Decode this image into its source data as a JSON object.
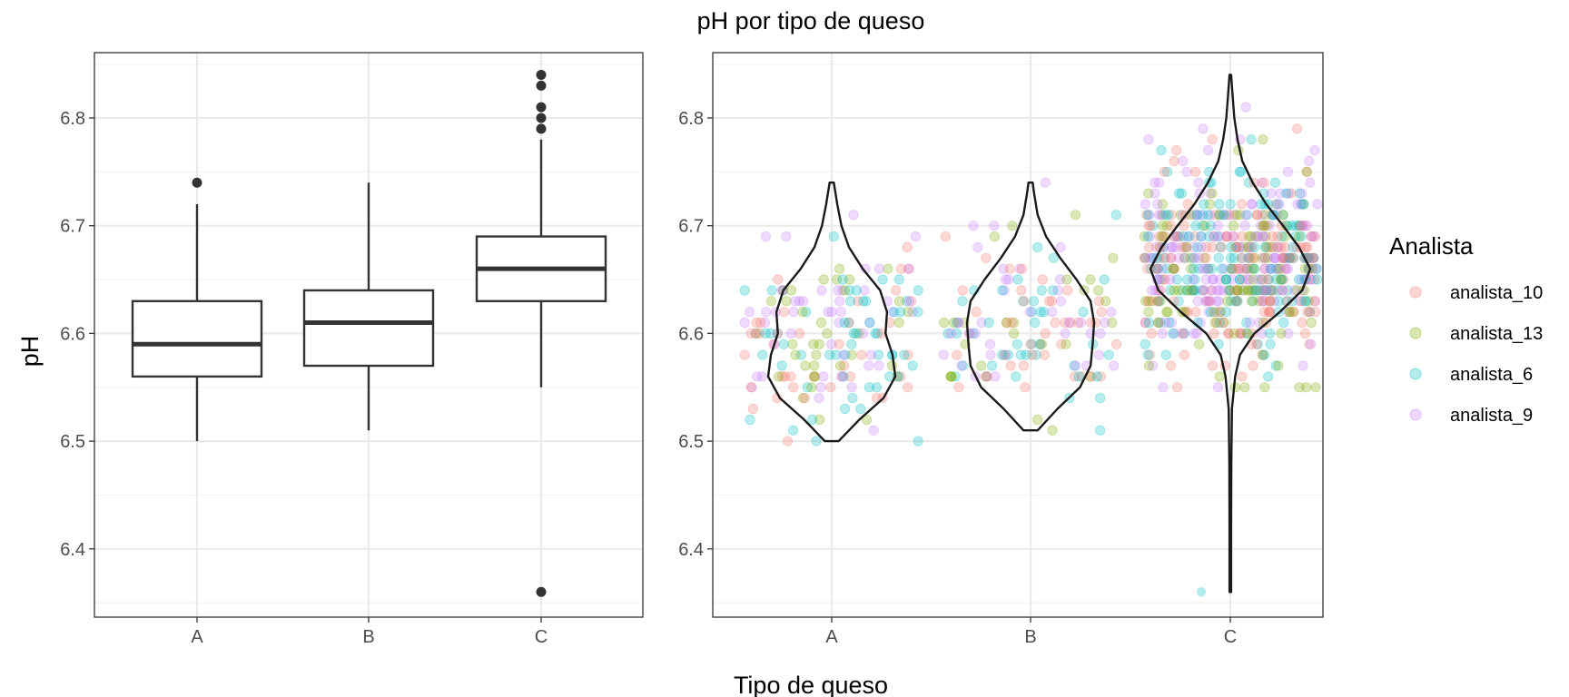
{
  "figure": {
    "title": "pH por tipo de queso",
    "xlabel": "Tipo de queso",
    "ylabel": "pH"
  },
  "colors": {
    "analista_10": "#F8766D",
    "analista_13": "#7CAE00",
    "analista_6": "#00BFC4",
    "analista_9": "#C77CFF",
    "ink": "#333333",
    "grid_major": "#EBEBEB",
    "grid_minor": "#F2F2F2"
  },
  "legend": {
    "title": "Analista",
    "items": [
      "analista_10",
      "analista_13",
      "analista_6",
      "analista_9"
    ]
  },
  "chart_data": [
    {
      "type": "box",
      "categories": [
        "A",
        "B",
        "C"
      ],
      "ylim": [
        6.35,
        6.85
      ],
      "yticks": [
        "6.4",
        "6.5",
        "6.6",
        "6.7",
        "6.8"
      ],
      "grid": true,
      "boxes": [
        {
          "category": "A",
          "whisker_low": 6.5,
          "q1": 6.56,
          "median": 6.59,
          "q3": 6.63,
          "whisker_high": 6.72,
          "outliers": [
            6.74
          ]
        },
        {
          "category": "B",
          "whisker_low": 6.51,
          "q1": 6.57,
          "median": 6.61,
          "q3": 6.64,
          "whisker_high": 6.74,
          "outliers": []
        },
        {
          "category": "C",
          "whisker_low": 6.55,
          "q1": 6.63,
          "median": 6.66,
          "q3": 6.69,
          "whisker_high": 6.78,
          "outliers": [
            6.36,
            6.79,
            6.8,
            6.81,
            6.83,
            6.84
          ]
        }
      ]
    },
    {
      "type": "violin",
      "categories": [
        "A",
        "B",
        "C"
      ],
      "ylim": [
        6.35,
        6.85
      ],
      "yticks": [
        "6.4",
        "6.5",
        "6.6",
        "6.7",
        "6.8"
      ],
      "grid": true,
      "legend_position": "right",
      "point_counts": {
        "A": 180,
        "B": 150,
        "C": 620
      },
      "violins": [
        {
          "category": "A",
          "y": [
            6.5,
            6.52,
            6.54,
            6.56,
            6.58,
            6.6,
            6.62,
            6.64,
            6.66,
            6.68,
            6.7,
            6.72,
            6.74
          ],
          "density": [
            0.1,
            0.4,
            0.75,
            0.92,
            0.88,
            0.78,
            0.8,
            0.7,
            0.45,
            0.25,
            0.14,
            0.08,
            0.03
          ]
        },
        {
          "category": "B",
          "y": [
            6.51,
            6.53,
            6.55,
            6.57,
            6.59,
            6.61,
            6.63,
            6.65,
            6.67,
            6.69,
            6.71,
            6.73,
            6.74
          ],
          "density": [
            0.1,
            0.38,
            0.7,
            0.85,
            0.88,
            0.9,
            0.85,
            0.65,
            0.42,
            0.22,
            0.1,
            0.05,
            0.03
          ]
        },
        {
          "category": "C",
          "y": [
            6.36,
            6.42,
            6.48,
            6.53,
            6.56,
            6.58,
            6.6,
            6.62,
            6.64,
            6.66,
            6.68,
            6.7,
            6.72,
            6.74,
            6.76,
            6.78,
            6.8,
            6.82,
            6.84
          ],
          "density": [
            0.01,
            0.01,
            0.012,
            0.02,
            0.06,
            0.12,
            0.3,
            0.62,
            0.9,
            1.0,
            0.86,
            0.66,
            0.45,
            0.28,
            0.15,
            0.09,
            0.05,
            0.03,
            0.01
          ]
        }
      ],
      "series": [
        {
          "name": "analista_10",
          "color": "#F8766D"
        },
        {
          "name": "analista_13",
          "color": "#7CAE00"
        },
        {
          "name": "analista_6",
          "color": "#00BFC4"
        },
        {
          "name": "analista_9",
          "color": "#C77CFF"
        }
      ]
    }
  ]
}
